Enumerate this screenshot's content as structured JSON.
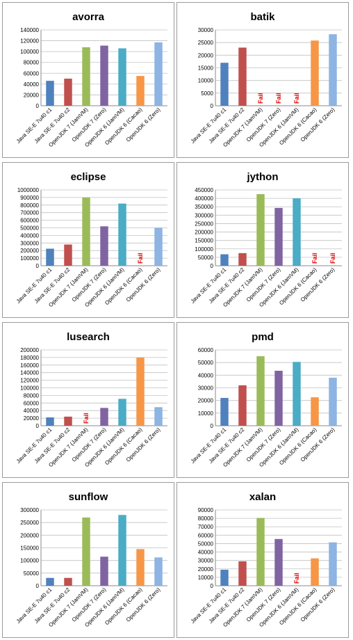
{
  "categories": [
    "Java SE-E 7u40 c1",
    "Java SE-E 7u40 c2",
    "OpenJDK 7 (JamVM)",
    "OpenJDK 7 (Zero)",
    "OpenJDK 6 (JamVM)",
    "OpenJDK 6 (Cacao)",
    "OpenJDK 6 (Zero)"
  ],
  "colors": [
    "#4F81BD",
    "#C0504D",
    "#9BBB59",
    "#8064A2",
    "#4BACC6",
    "#F79646",
    "#8DB4E2"
  ],
  "fail_label": "Fail",
  "chart_data": [
    {
      "type": "bar",
      "title": "avorra",
      "ylim": [
        0,
        140000
      ],
      "yticks": [
        0,
        20000,
        40000,
        60000,
        80000,
        100000,
        120000,
        140000
      ],
      "categories": [
        "Java SE-E 7u40 c1",
        "Java SE-E 7u40 c2",
        "OpenJDK 7 (JamVM)",
        "OpenJDK 7 (Zero)",
        "OpenJDK 6 (JamVM)",
        "OpenJDK 6 (Cacao)",
        "OpenJDK 6 (Zero)"
      ],
      "values": [
        46000,
        50000,
        108000,
        111000,
        106000,
        55000,
        117000
      ]
    },
    {
      "type": "bar",
      "title": "batik",
      "ylim": [
        0,
        30000
      ],
      "yticks": [
        0,
        5000,
        10000,
        15000,
        20000,
        25000,
        30000
      ],
      "categories": [
        "Java SE-E 7u40 c1",
        "Java SE-E 7u40 c2",
        "OpenJDK 7 (JamVM)",
        "OpenJDK 7 (Zero)",
        "OpenJDK 6 (JamVM)",
        "OpenJDK 6 (Cacao)",
        "OpenJDK 6 (Zero)"
      ],
      "values": [
        17000,
        23000,
        null,
        null,
        null,
        25800,
        28300
      ]
    },
    {
      "type": "bar",
      "title": "eclipse",
      "ylim": [
        0,
        1000000
      ],
      "yticks": [
        0,
        100000,
        200000,
        300000,
        400000,
        500000,
        600000,
        700000,
        800000,
        900000,
        1000000
      ],
      "categories": [
        "Java SE-E 7u40 c1",
        "Java SE-E 7u40 c2",
        "OpenJDK 7 (JamVM)",
        "OpenJDK 7 (Zero)",
        "OpenJDK 6 (JamVM)",
        "OpenJDK 6 (Cacao)",
        "OpenJDK 6 (Zero)"
      ],
      "values": [
        225000,
        280000,
        900000,
        520000,
        820000,
        null,
        500000
      ]
    },
    {
      "type": "bar",
      "title": "jython",
      "ylim": [
        0,
        450000
      ],
      "yticks": [
        0,
        50000,
        100000,
        150000,
        200000,
        250000,
        300000,
        350000,
        400000,
        450000
      ],
      "categories": [
        "Java SE-E 7u40 c1",
        "Java SE-E 7u40 c2",
        "OpenJDK 7 (JamVM)",
        "OpenJDK 7 (Zero)",
        "OpenJDK 6 (JamVM)",
        "OpenJDK 6 (Cacao)",
        "OpenJDK 6 (Zero)"
      ],
      "values": [
        68000,
        75000,
        425000,
        343000,
        400000,
        null,
        null
      ]
    },
    {
      "type": "bar",
      "title": "lusearch",
      "ylim": [
        0,
        200000
      ],
      "yticks": [
        0,
        20000,
        40000,
        60000,
        80000,
        100000,
        120000,
        140000,
        160000,
        180000,
        200000
      ],
      "categories": [
        "Java SE-E 7u40 c1",
        "Java SE-E 7u40 c2",
        "OpenJDK 7 (JamVM)",
        "OpenJDK 7 (Zero)",
        "OpenJDK 6 (JamVM)",
        "OpenJDK 6 (Cacao)",
        "OpenJDK 6 (Zero)"
      ],
      "values": [
        22000,
        24000,
        null,
        47000,
        71000,
        180000,
        49000
      ]
    },
    {
      "type": "bar",
      "title": "pmd",
      "ylim": [
        0,
        60000
      ],
      "yticks": [
        0,
        10000,
        20000,
        30000,
        40000,
        50000,
        60000
      ],
      "categories": [
        "Java SE-E 7u40 c1",
        "Java SE-E 7u40 c2",
        "OpenJDK 7 (JamVM)",
        "OpenJDK 7 (Zero)",
        "OpenJDK 6 (JamVM)",
        "OpenJDK 6 (Cacao)",
        "OpenJDK 6 (Zero)"
      ],
      "values": [
        22000,
        32000,
        55000,
        43500,
        50500,
        22500,
        38000
      ]
    },
    {
      "type": "bar",
      "title": "sunflow",
      "ylim": [
        0,
        300000
      ],
      "yticks": [
        0,
        50000,
        100000,
        150000,
        200000,
        250000,
        300000
      ],
      "categories": [
        "Java SE-E 7u40 c1",
        "Java SE-E 7u40 c2",
        "OpenJDK 7 (JamVM)",
        "OpenJDK 7 (Zero)",
        "OpenJDK 6 (JamVM)",
        "OpenJDK 6 (Cacao)",
        "OpenJDK 6 (Zero)"
      ],
      "values": [
        31000,
        31000,
        270000,
        115000,
        280000,
        145000,
        112000
      ]
    },
    {
      "type": "bar",
      "title": "xalan",
      "ylim": [
        0,
        90000
      ],
      "yticks": [
        0,
        10000,
        20000,
        30000,
        40000,
        50000,
        60000,
        70000,
        80000,
        90000
      ],
      "categories": [
        "Java SE-E 7u40 c1",
        "Java SE-E 7u40 c2",
        "OpenJDK 7 (JamVM)",
        "OpenJDK 7 (Zero)",
        "OpenJDK 6 (JamVM)",
        "OpenJDK 6 (Cacao)",
        "OpenJDK 6 (Zero)"
      ],
      "values": [
        19000,
        29000,
        80500,
        55500,
        null,
        32500,
        51500
      ]
    }
  ]
}
